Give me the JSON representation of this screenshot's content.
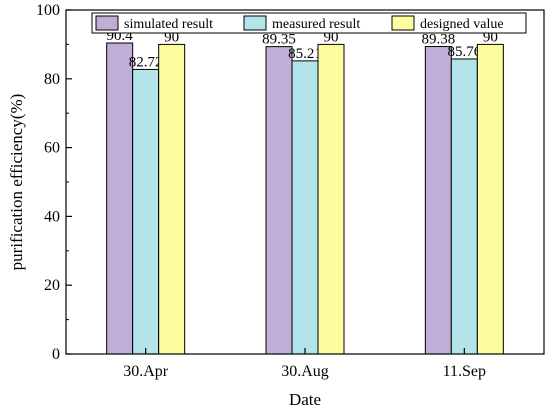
{
  "chart_data": {
    "type": "bar",
    "xlabel": "Date",
    "ylabel": "purification efficiency(%)",
    "ylim": [
      0,
      100
    ],
    "yticks": [
      0,
      20,
      40,
      60,
      80,
      100
    ],
    "categories": [
      "30.Apr",
      "30.Aug",
      "11.Sep"
    ],
    "series": [
      {
        "name": "simulated result",
        "values": [
          90.4,
          89.35,
          89.38
        ],
        "labels": [
          "90.4",
          "89.35",
          "89.38"
        ],
        "color": "#c0aed6"
      },
      {
        "name": "measured result",
        "values": [
          82.72,
          85.21,
          85.76
        ],
        "labels": [
          "82.72",
          "85.21",
          "85.76"
        ],
        "color": "#b2e4ea"
      },
      {
        "name": "designed value",
        "values": [
          90,
          90,
          90
        ],
        "labels": [
          "90",
          "90",
          "90"
        ],
        "color": "#fdfda0"
      }
    ],
    "legend_position": "top",
    "grid": false
  }
}
